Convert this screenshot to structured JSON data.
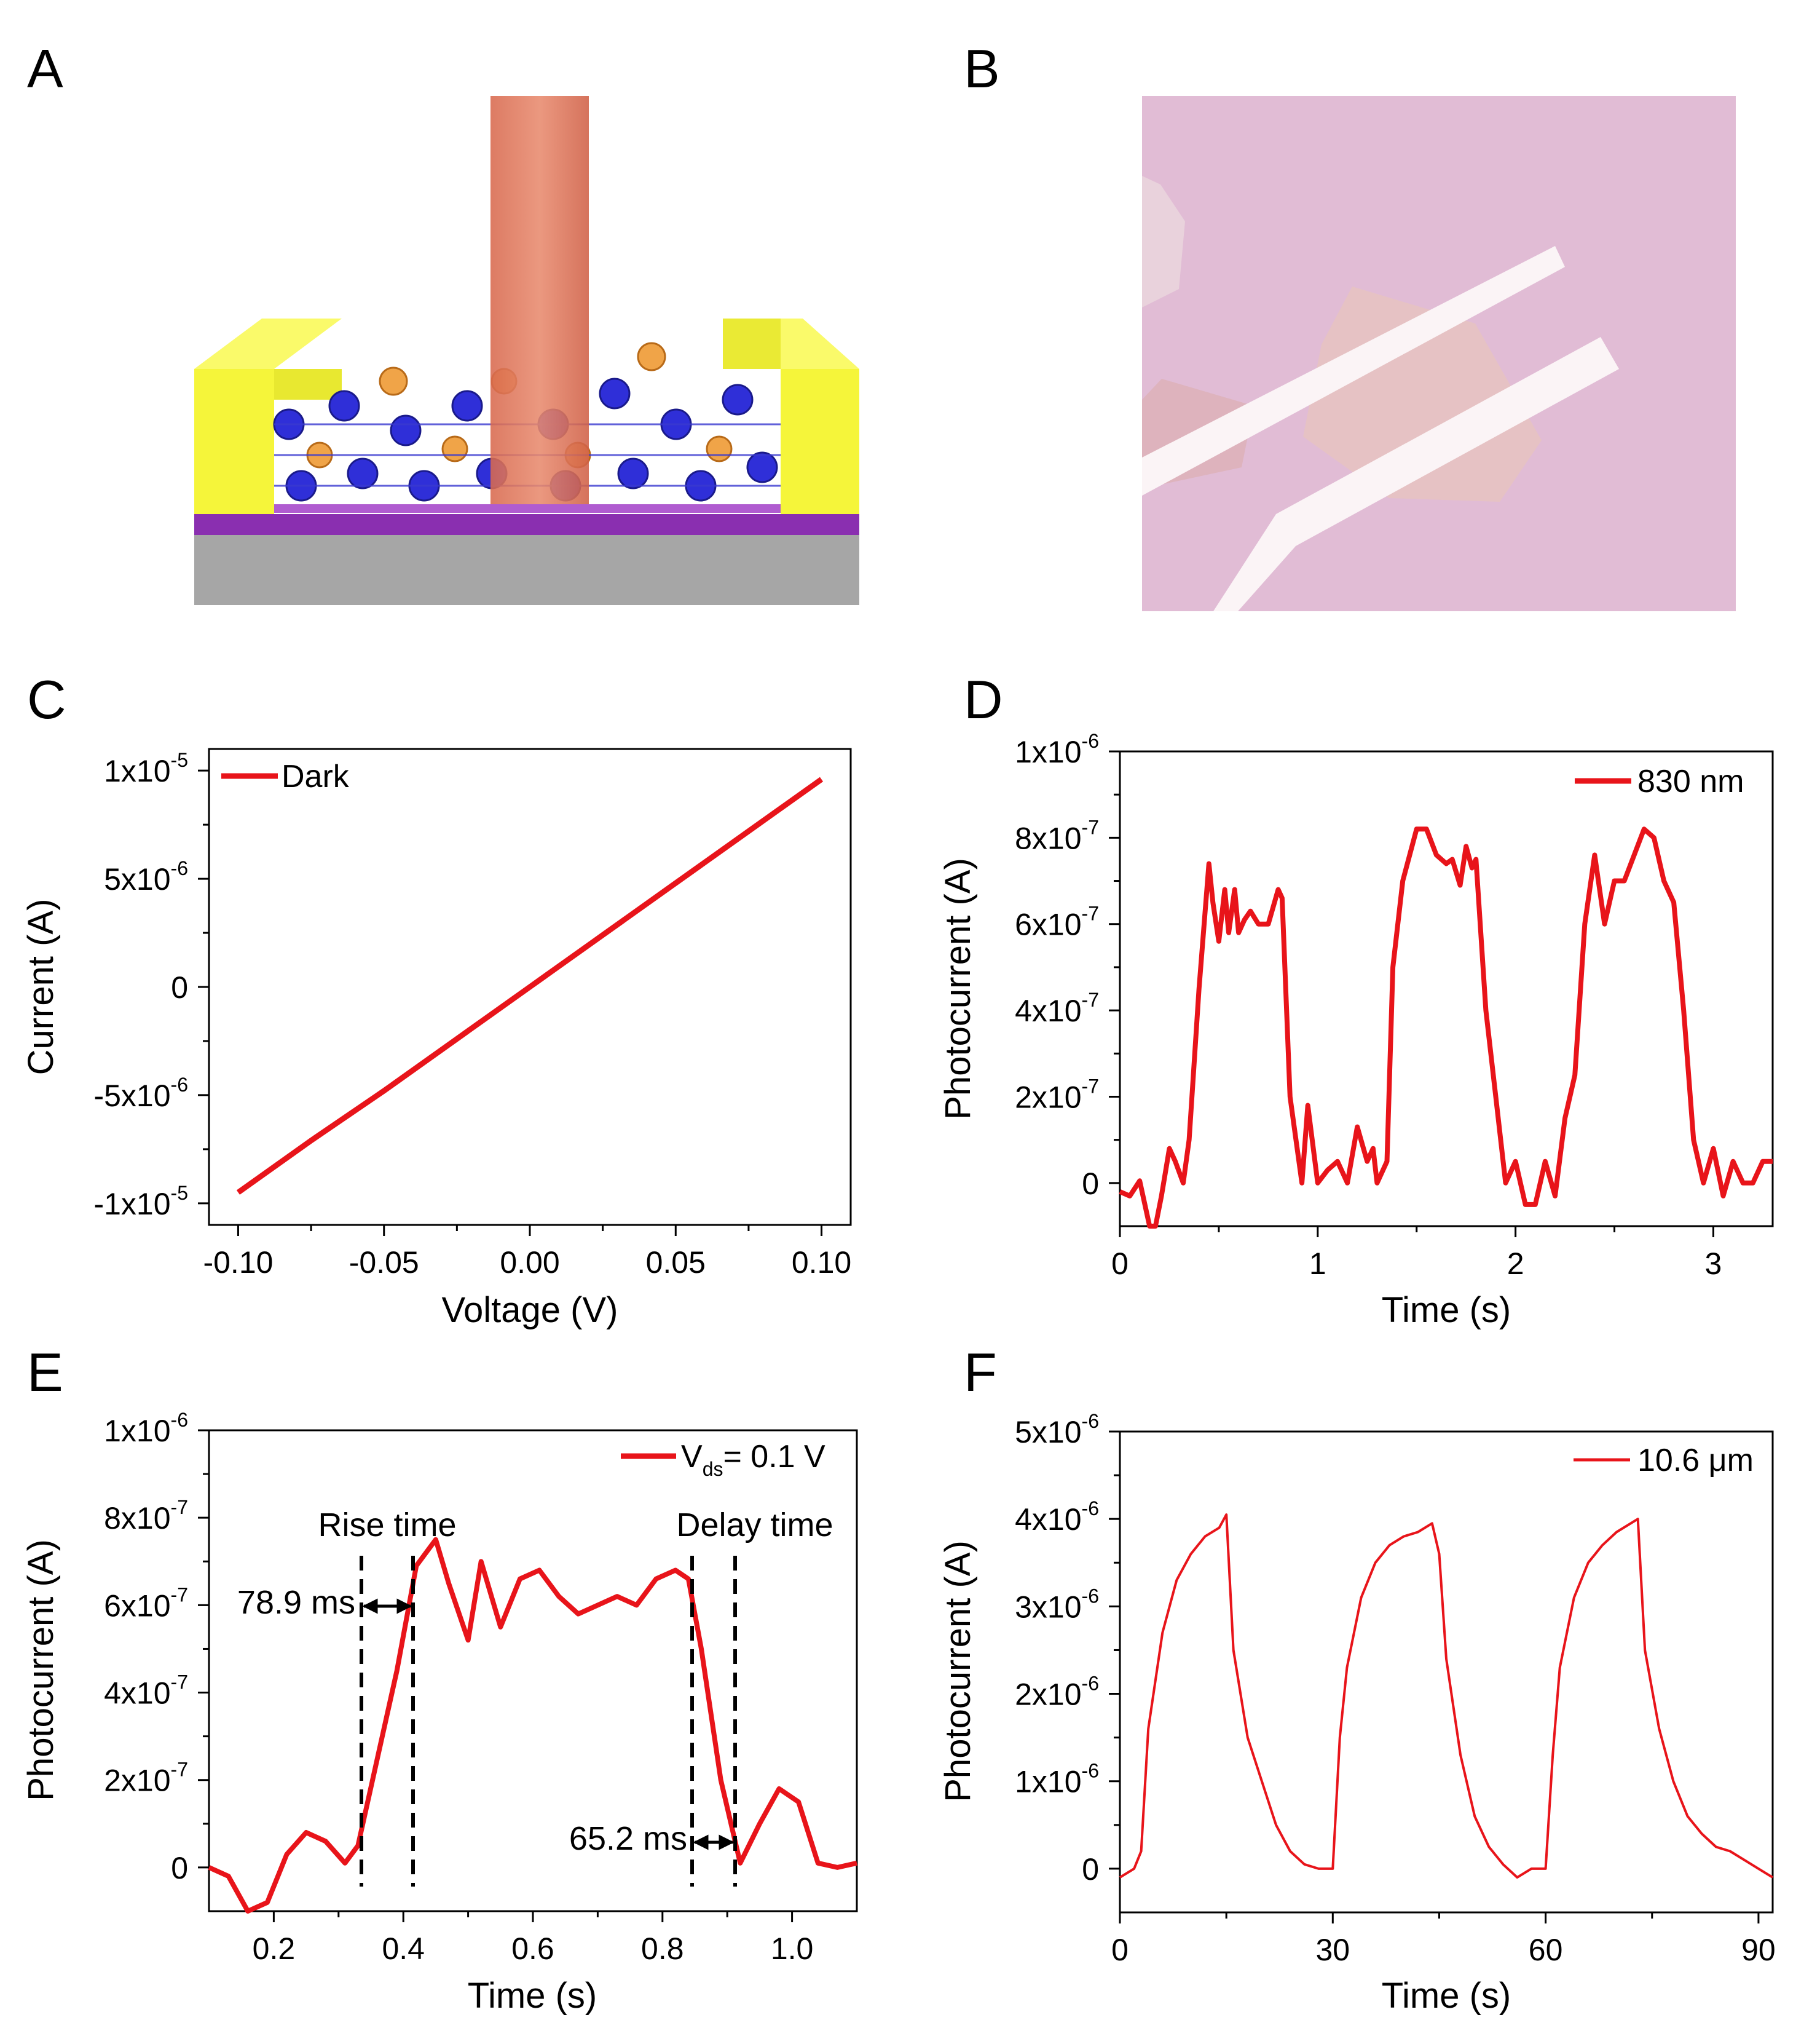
{
  "panels": [
    {
      "letter": "A"
    },
    {
      "letter": "B"
    },
    {
      "letter": "C"
    },
    {
      "letter": "D"
    },
    {
      "letter": "E"
    },
    {
      "letter": "F"
    }
  ],
  "chart_data": [
    {
      "id": "c",
      "type": "line",
      "xlabel": "Voltage (V)",
      "ylabel": "Current (A)",
      "xlim": [
        -0.11,
        0.11
      ],
      "ylim": [
        -1.1e-05,
        1.1e-05
      ],
      "xticks": [
        -0.1,
        -0.05,
        0.0,
        0.05,
        0.1
      ],
      "xtick_labels": [
        "-0.10",
        "-0.05",
        "0.00",
        "0.05",
        "0.10"
      ],
      "yticks": [
        -1e-05,
        -5e-06,
        0,
        5e-06,
        1e-05
      ],
      "ytick_labels": [
        {
          "base": "-1x10",
          "exp": "-5"
        },
        {
          "base": "-5x10",
          "exp": "-6"
        },
        {
          "base": "0",
          "exp": ""
        },
        {
          "base": "5x10",
          "exp": "-6"
        },
        {
          "base": "1x10",
          "exp": "-5"
        }
      ],
      "series": [
        {
          "name": "Dark",
          "color": "#e8141a",
          "x": [
            -0.1,
            -0.075,
            -0.05,
            -0.025,
            0,
            0.025,
            0.05,
            0.075,
            0.1
          ],
          "y": [
            -9.5e-06,
            -7.1e-06,
            -4.8e-06,
            -2.4e-06,
            0,
            2.4e-06,
            4.8e-06,
            7.2e-06,
            9.6e-06
          ]
        }
      ]
    },
    {
      "id": "d",
      "type": "line",
      "xlabel": "Time (s)",
      "ylabel": "Photocurrent (A)",
      "xlim": [
        0,
        3.3
      ],
      "ylim": [
        -1e-07,
        1e-06
      ],
      "xticks": [
        0,
        1,
        2,
        3
      ],
      "xtick_labels": [
        "0",
        "1",
        "2",
        "3"
      ],
      "yticks": [
        0,
        2e-07,
        4e-07,
        6e-07,
        8e-07,
        1e-06
      ],
      "ytick_labels": [
        {
          "base": "0",
          "exp": ""
        },
        {
          "base": "2x10",
          "exp": "-7"
        },
        {
          "base": "4x10",
          "exp": "-7"
        },
        {
          "base": "6x10",
          "exp": "-7"
        },
        {
          "base": "8x10",
          "exp": "-7"
        },
        {
          "base": "1x10",
          "exp": "-6"
        }
      ],
      "series": [
        {
          "name": "830 nm",
          "color": "#e8141a",
          "x": [
            0,
            0.05,
            0.1,
            0.15,
            0.18,
            0.21,
            0.25,
            0.28,
            0.32,
            0.35,
            0.4,
            0.45,
            0.47,
            0.5,
            0.53,
            0.55,
            0.58,
            0.6,
            0.63,
            0.66,
            0.7,
            0.75,
            0.8,
            0.82,
            0.86,
            0.92,
            0.95,
            1.0,
            1.05,
            1.1,
            1.15,
            1.2,
            1.25,
            1.28,
            1.3,
            1.35,
            1.38,
            1.43,
            1.5,
            1.55,
            1.6,
            1.65,
            1.68,
            1.72,
            1.75,
            1.78,
            1.8,
            1.85,
            1.9,
            1.95,
            2.0,
            2.05,
            2.1,
            2.15,
            2.2,
            2.25,
            2.3,
            2.35,
            2.4,
            2.45,
            2.5,
            2.55,
            2.6,
            2.65,
            2.7,
            2.75,
            2.8,
            2.85,
            2.9,
            2.95,
            3.0,
            3.05,
            3.1,
            3.15,
            3.2,
            3.25,
            3.3
          ],
          "y": [
            -2e-08,
            -3e-08,
            5e-09,
            -1e-07,
            -1e-07,
            -3e-08,
            8e-08,
            5e-08,
            0,
            1e-07,
            4.5e-07,
            7.4e-07,
            6.5e-07,
            5.6e-07,
            6.8e-07,
            5.8e-07,
            6.8e-07,
            5.8e-07,
            6.1e-07,
            6.3e-07,
            6e-07,
            6e-07,
            6.8e-07,
            6.6e-07,
            2e-07,
            0,
            1.8e-07,
            0,
            3e-08,
            5e-08,
            0,
            1.3e-07,
            5e-08,
            8e-08,
            0,
            5e-08,
            5e-07,
            7e-07,
            8.2e-07,
            8.2e-07,
            7.6e-07,
            7.4e-07,
            7.5e-07,
            6.9e-07,
            7.8e-07,
            7.3e-07,
            7.5e-07,
            4e-07,
            2e-07,
            0,
            5e-08,
            -5e-08,
            -5e-08,
            5e-08,
            -3e-08,
            1.5e-07,
            2.5e-07,
            6e-07,
            7.6e-07,
            6e-07,
            7e-07,
            7e-07,
            7.6e-07,
            8.2e-07,
            8e-07,
            7e-07,
            6.5e-07,
            4e-07,
            1e-07,
            0,
            8e-08,
            -3e-08,
            5e-08,
            0,
            0,
            5e-08,
            5e-08
          ]
        }
      ]
    },
    {
      "id": "e",
      "type": "line",
      "xlabel": "Time (s)",
      "ylabel": "Photocurrent (A)",
      "xlim": [
        0.1,
        1.1
      ],
      "ylim": [
        -1e-07,
        1e-06
      ],
      "xticks": [
        0.2,
        0.4,
        0.6,
        0.8,
        1.0
      ],
      "xtick_labels": [
        "0.2",
        "0.4",
        "0.6",
        "0.8",
        "1.0"
      ],
      "yticks": [
        0,
        2e-07,
        4e-07,
        6e-07,
        8e-07,
        1e-06
      ],
      "ytick_labels": [
        {
          "base": "0",
          "exp": ""
        },
        {
          "base": "2x10",
          "exp": "-7"
        },
        {
          "base": "4x10",
          "exp": "-7"
        },
        {
          "base": "6x10",
          "exp": "-7"
        },
        {
          "base": "8x10",
          "exp": "-7"
        },
        {
          "base": "1x10",
          "exp": "-6"
        }
      ],
      "legend": {
        "prefix": "V",
        "subscript": "ds",
        "suffix": "= 0.1 V"
      },
      "annotations": {
        "rise_label": "Rise time",
        "rise_value": "78.9 ms",
        "delay_label": "Delay time",
        "delay_value": "65.2 ms"
      },
      "series": [
        {
          "name": "Vds = 0.1 V",
          "color": "#e8141a",
          "x": [
            0.1,
            0.13,
            0.16,
            0.19,
            0.22,
            0.25,
            0.28,
            0.31,
            0.33,
            0.36,
            0.39,
            0.42,
            0.45,
            0.47,
            0.5,
            0.52,
            0.55,
            0.58,
            0.61,
            0.64,
            0.67,
            0.7,
            0.73,
            0.76,
            0.79,
            0.82,
            0.84,
            0.86,
            0.89,
            0.92,
            0.95,
            0.98,
            1.01,
            1.04,
            1.07,
            1.1
          ],
          "y": [
            0,
            -2e-08,
            -1e-07,
            -8e-08,
            3e-08,
            8e-08,
            6e-08,
            1e-08,
            5e-08,
            2.5e-07,
            4.5e-07,
            6.9e-07,
            7.5e-07,
            6.5e-07,
            5.2e-07,
            7e-07,
            5.5e-07,
            6.6e-07,
            6.8e-07,
            6.2e-07,
            5.8e-07,
            6e-07,
            6.2e-07,
            6e-07,
            6.6e-07,
            6.8e-07,
            6.6e-07,
            5e-07,
            2e-07,
            1e-08,
            1e-07,
            1.8e-07,
            1.5e-07,
            1e-08,
            0,
            1e-08
          ]
        }
      ]
    },
    {
      "id": "f",
      "type": "line",
      "xlabel": "Time (s)",
      "ylabel": "Photocurrent (A)",
      "xlim": [
        0,
        92
      ],
      "ylim": [
        -5e-07,
        5e-06
      ],
      "xticks": [
        0,
        30,
        60,
        90
      ],
      "xtick_labels": [
        "0",
        "30",
        "60",
        "90"
      ],
      "yticks": [
        0,
        1e-06,
        2e-06,
        3e-06,
        4e-06,
        5e-06
      ],
      "ytick_labels": [
        {
          "base": "0",
          "exp": ""
        },
        {
          "base": "1x10",
          "exp": "-6"
        },
        {
          "base": "2x10",
          "exp": "-6"
        },
        {
          "base": "3x10",
          "exp": "-6"
        },
        {
          "base": "4x10",
          "exp": "-6"
        },
        {
          "base": "5x10",
          "exp": "-6"
        }
      ],
      "series": [
        {
          "name": "10.6 μm",
          "color": "#e8141a",
          "x": [
            0,
            2,
            3,
            4,
            6,
            8,
            10,
            12,
            14,
            15,
            16,
            18,
            20,
            22,
            24,
            26,
            28,
            30,
            31,
            32,
            34,
            36,
            38,
            40,
            42,
            44,
            45,
            46,
            48,
            50,
            52,
            54,
            56,
            58,
            60,
            61,
            62,
            64,
            66,
            68,
            70,
            72,
            73,
            74,
            76,
            78,
            80,
            82,
            84,
            86,
            88,
            90,
            92
          ],
          "y": [
            -1e-07,
            0,
            2e-07,
            1.6e-06,
            2.7e-06,
            3.3e-06,
            3.6e-06,
            3.8e-06,
            3.9e-06,
            4.05e-06,
            2.5e-06,
            1.5e-06,
            1e-06,
            5e-07,
            2e-07,
            5e-08,
            0,
            0,
            1.5e-06,
            2.3e-06,
            3.1e-06,
            3.5e-06,
            3.7e-06,
            3.8e-06,
            3.85e-06,
            3.95e-06,
            3.6e-06,
            2.4e-06,
            1.3e-06,
            6e-07,
            2.5e-07,
            5e-08,
            -1e-07,
            0,
            0,
            1.3e-06,
            2.3e-06,
            3.1e-06,
            3.5e-06,
            3.7e-06,
            3.85e-06,
            3.95e-06,
            4e-06,
            2.5e-06,
            1.6e-06,
            1e-06,
            6e-07,
            4e-07,
            2.5e-07,
            2e-07,
            1e-07,
            0,
            -1e-07
          ]
        }
      ]
    }
  ]
}
